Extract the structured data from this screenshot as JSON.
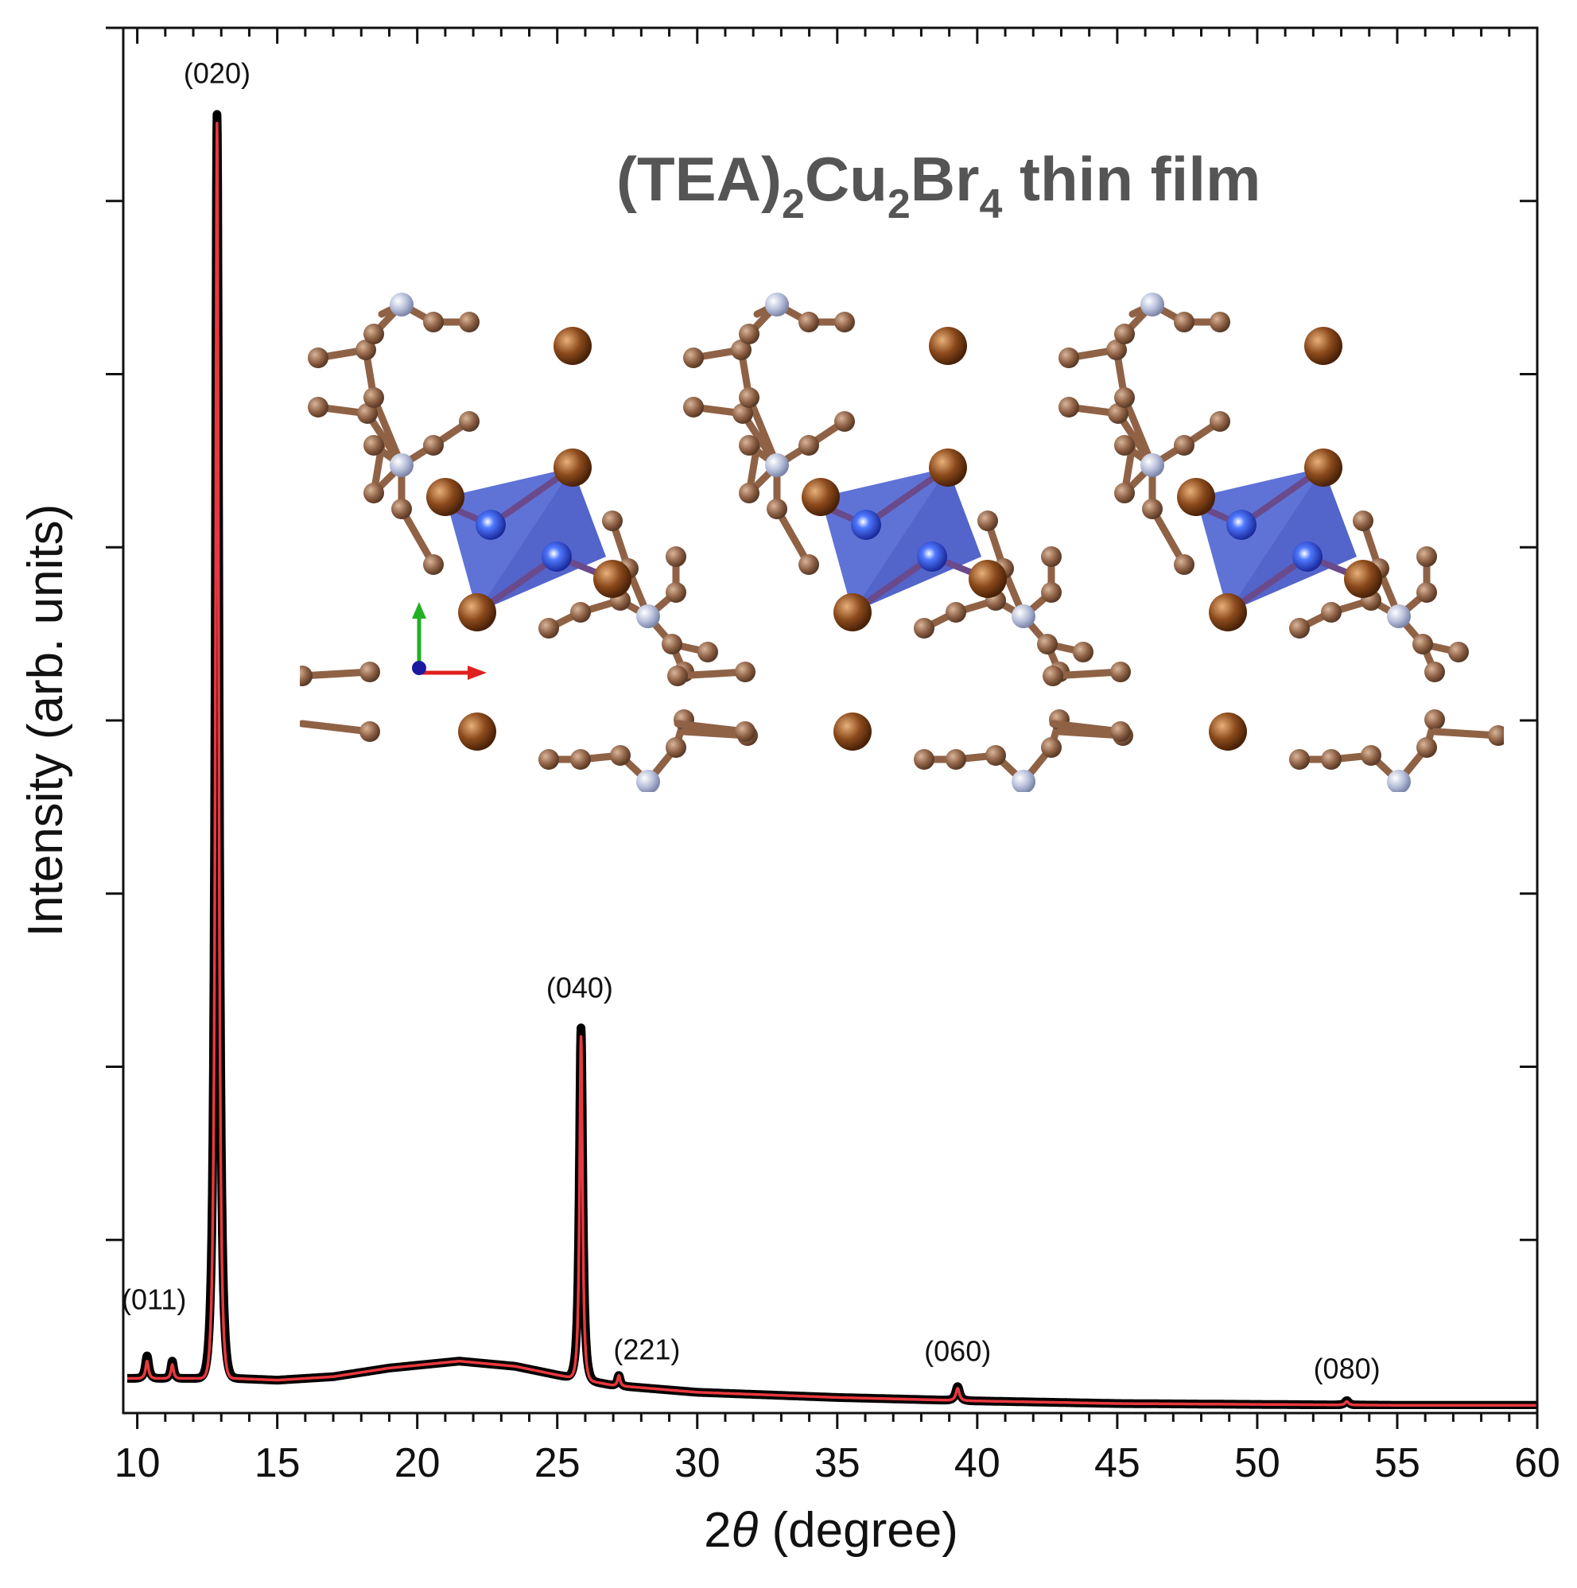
{
  "chart_data": {
    "type": "line",
    "title": "(TEA)2Cu2Br4 thin film",
    "title_parts": {
      "p1": "(TEA)",
      "s1": "2",
      "p2": "Cu",
      "s2": "2",
      "p3": "Br",
      "s3": "4",
      "p4": " thin film"
    },
    "xlabel": "2θ (degree)",
    "xlabel_parts": {
      "num": "2",
      "theta": "θ",
      "rest": " (degree)"
    },
    "ylabel": "Intensity (arb. units)",
    "xlim": [
      9.5,
      60
    ],
    "ylim": [
      0,
      8
    ],
    "x_ticks": [
      10,
      15,
      20,
      25,
      30,
      35,
      40,
      45,
      50,
      55,
      60
    ],
    "x_tick_labels": [
      "10",
      "15",
      "20",
      "25",
      "30",
      "35",
      "40",
      "45",
      "50",
      "55",
      "60"
    ],
    "y_ticks": [
      0,
      1,
      2,
      3,
      4,
      5,
      6,
      7,
      8
    ],
    "y_tick_labels_shown": false,
    "grid": false,
    "legend": false,
    "colors": {
      "measured": "#000000",
      "fit": "#e8383d",
      "title": "#555555",
      "octahedra": "#3b4fc4"
    },
    "series": [
      {
        "style": "thick black",
        "peaks": [
          {
            "x": 10.35,
            "height": 0.13,
            "width": 0.12
          },
          {
            "x": 11.25,
            "height": 0.1,
            "width": 0.1
          },
          {
            "x": 12.85,
            "height": 7.3,
            "width": 0.13
          },
          {
            "x": 25.85,
            "height": 2.03,
            "width": 0.12
          },
          {
            "x": 27.2,
            "height": 0.06,
            "width": 0.1
          },
          {
            "x": 39.3,
            "height": 0.08,
            "width": 0.14
          },
          {
            "x": 53.2,
            "height": 0.025,
            "width": 0.14
          }
        ],
        "background": [
          [
            9.5,
            0.2
          ],
          [
            11,
            0.2
          ],
          [
            12,
            0.2
          ],
          [
            13.5,
            0.2
          ],
          [
            15,
            0.19
          ],
          [
            17,
            0.21
          ],
          [
            19,
            0.26
          ],
          [
            21.5,
            0.3
          ],
          [
            23.5,
            0.27
          ],
          [
            25,
            0.22
          ],
          [
            27,
            0.16
          ],
          [
            30,
            0.12
          ],
          [
            35,
            0.09
          ],
          [
            40,
            0.07
          ],
          [
            45,
            0.055
          ],
          [
            50,
            0.05
          ],
          [
            55,
            0.045
          ],
          [
            60,
            0.045
          ]
        ]
      },
      {
        "style": "thin red",
        "peaks": [
          {
            "x": 10.35,
            "height": 0.1,
            "width": 0.1
          },
          {
            "x": 11.25,
            "height": 0.08,
            "width": 0.09
          },
          {
            "x": 12.85,
            "height": 7.25,
            "width": 0.11
          },
          {
            "x": 25.85,
            "height": 1.98,
            "width": 0.1
          },
          {
            "x": 27.2,
            "height": 0.06,
            "width": 0.09
          },
          {
            "x": 39.3,
            "height": 0.07,
            "width": 0.12
          },
          {
            "x": 53.2,
            "height": 0.02,
            "width": 0.12
          }
        ],
        "background": [
          [
            9.5,
            0.2
          ],
          [
            11,
            0.2
          ],
          [
            12,
            0.2
          ],
          [
            13.5,
            0.2
          ],
          [
            15,
            0.19
          ],
          [
            17,
            0.21
          ],
          [
            19,
            0.26
          ],
          [
            21.5,
            0.3
          ],
          [
            23.5,
            0.27
          ],
          [
            25,
            0.22
          ],
          [
            27,
            0.16
          ],
          [
            30,
            0.12
          ],
          [
            35,
            0.09
          ],
          [
            40,
            0.07
          ],
          [
            45,
            0.055
          ],
          [
            50,
            0.05
          ],
          [
            55,
            0.045
          ],
          [
            60,
            0.045
          ]
        ]
      }
    ],
    "annotations": [
      {
        "text": "(011)",
        "x": 10.6,
        "y": 0.6
      },
      {
        "text": "(020)",
        "x": 12.85,
        "y": 7.68
      },
      {
        "text": "(040)",
        "x": 25.8,
        "y": 2.4
      },
      {
        "text": "(221)",
        "x": 28.2,
        "y": 0.31
      },
      {
        "text": "(060)",
        "x": 39.3,
        "y": 0.3
      },
      {
        "text": "(080)",
        "x": 53.2,
        "y": 0.2
      }
    ]
  }
}
